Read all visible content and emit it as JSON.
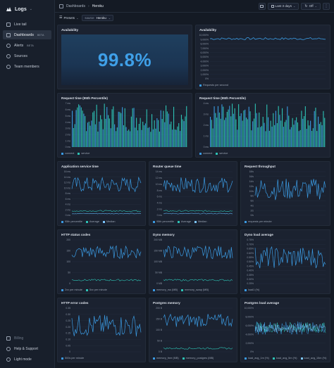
{
  "app": {
    "name": "Logs"
  },
  "sidebar": {
    "items": [
      {
        "label": "Live tail",
        "icon": "monitor-icon"
      },
      {
        "label": "Dashboards",
        "badge": "BETA",
        "icon": "dashboard-icon"
      },
      {
        "label": "Alerts",
        "badge": "BETA",
        "icon": "bell-icon"
      },
      {
        "label": "Sources",
        "icon": "database-icon"
      },
      {
        "label": "Team members",
        "icon": "users-icon"
      }
    ],
    "bottom": [
      {
        "label": "Billing",
        "icon": "card-icon"
      },
      {
        "label": "Help & Support",
        "icon": "help-icon"
      },
      {
        "label": "Light mode",
        "icon": "sun-icon"
      }
    ]
  },
  "breadcrumb": {
    "root": "Dashboards",
    "current": "Heroku"
  },
  "toolbar": {
    "range": "Last 3 days",
    "refresh": "Off"
  },
  "filters": {
    "presets": "Presets",
    "tag_key": "source",
    "tag_value": "Heroku"
  },
  "colors": {
    "accent": "#3b9be3",
    "teal": "#2ec4b6",
    "bg": "#141a24",
    "panel": "#1b2230"
  },
  "panels": {
    "availability_big": {
      "title": "Availability",
      "value": "99.8%"
    },
    "availability": {
      "title": "Availability",
      "yticks": [
        "10,000%",
        "9,000%",
        "8,000%",
        "7,000%",
        "6,000%",
        "5,000%",
        "4,000%",
        "3,000%",
        "2,000%",
        "1,000%",
        "0%"
      ],
      "legend": [
        "Requests per second"
      ]
    },
    "req_time_1": {
      "title": "Request time (95th Percentile)",
      "yticks": [
        "7 ms",
        "6 ms",
        "5 ms",
        "4 ms",
        "3 ms",
        "2 ms",
        "1 ms",
        "0 ms"
      ],
      "legend": [
        "connect",
        "service"
      ]
    },
    "req_time_2": {
      "title": "Request time (95th Percentile)",
      "yticks": [
        "4 ms",
        "3 ms",
        "2 ms",
        "1 ms",
        "0 ms"
      ],
      "legend": [
        "connect",
        "service"
      ]
    },
    "app_service": {
      "title": "Application service time",
      "yticks": [
        "16 ms",
        "14 ms",
        "12 ms",
        "10 ms",
        "8 ms",
        "6 ms",
        "4 ms",
        "2 ms",
        "0 ms"
      ],
      "legend": [
        "95th percentile",
        "Average",
        "Median"
      ]
    },
    "router_queue": {
      "title": "Router queue time",
      "yticks": [
        "14 ms",
        "12 ms",
        "10 ms",
        "8 ms",
        "6 ms",
        "4 ms",
        "2 ms",
        "0 ms"
      ],
      "legend": [
        "95th percentile",
        "Average",
        "Median"
      ]
    },
    "throughput": {
      "title": "Request throughput",
      "yticks": [
        "18/s",
        "16/s",
        "14/s",
        "12/s",
        "10/s",
        "8/s",
        "6/s",
        "4/s",
        "2/s",
        "0/s"
      ],
      "legend": [
        "requests per minute"
      ]
    },
    "http_status": {
      "title": "HTTP status codes",
      "yticks": [
        "200",
        "150",
        "100",
        "50",
        "0"
      ],
      "legend": [
        "2xx per minute",
        "5xx per minute"
      ]
    },
    "dyno_memory": {
      "title": "Dyno memory",
      "yticks": [
        "200 MB",
        "150 MB",
        "100 MB",
        "50 MB",
        "0 MB"
      ],
      "legend": [
        "memory_rss (MB)",
        "memory_swap (MB)"
      ]
    },
    "dyno_load": {
      "title": "Dyno load average",
      "yticks": [
        "0.75%",
        "0.70%",
        "0.65%",
        "0.60%",
        "0.55%",
        "0.50%",
        "0.45%",
        "0.40%",
        "0.35%",
        "0.30%",
        "0.25%"
      ],
      "legend": [
        "load1 (%)"
      ]
    },
    "http_errors": {
      "title": "HTTP error codes",
      "yticks": [
        "0.35",
        "0.30",
        "0.25",
        "0.20",
        "0.15",
        "0.10",
        "0.05",
        "0"
      ],
      "legend": [
        "500s per minute"
      ]
    },
    "pg_memory": {
      "title": "Postgres memory",
      "yticks": [
        "200 B",
        "150 B",
        "100 B",
        "50 B",
        "0 B"
      ],
      "legend": [
        "memory_free (MB)",
        "memory_postgres (MB)"
      ]
    },
    "pg_load": {
      "title": "Postgres load average",
      "yticks": [
        "10,000%",
        "8,000%",
        "6,000%",
        "4,000%",
        "2,000%",
        "0%"
      ],
      "legend": [
        "load_avg_1m (%)",
        "load_avg_5m (%)",
        "load_avg_15m (%)"
      ]
    }
  }
}
